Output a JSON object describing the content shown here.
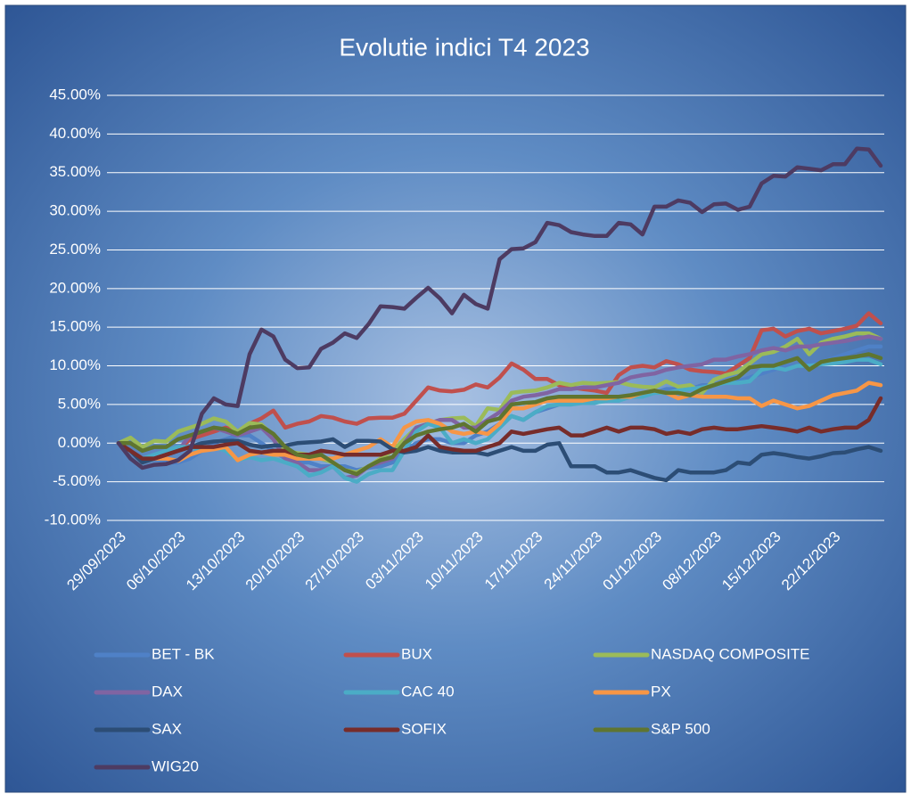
{
  "chart_data": {
    "type": "line",
    "title": "Evolutie indici T4 2023",
    "categories": [
      "29/09/2023",
      null,
      null,
      null,
      null,
      "06/10/2023",
      null,
      null,
      null,
      null,
      "13/10/2023",
      null,
      null,
      null,
      null,
      "20/10/2023",
      null,
      null,
      null,
      null,
      "27/10/2023",
      null,
      null,
      null,
      null,
      "03/11/2023",
      null,
      null,
      null,
      null,
      "10/11/2023",
      null,
      null,
      null,
      null,
      "17/11/2023",
      null,
      null,
      null,
      null,
      "24/11/2023",
      null,
      null,
      null,
      null,
      "01/12/2023",
      null,
      null,
      null,
      null,
      "08/12/2023",
      null,
      null,
      null,
      null,
      "15/12/2023",
      null,
      null,
      null,
      null,
      "22/12/2023",
      null,
      null,
      null,
      null
    ],
    "ylim": [
      -10,
      45
    ],
    "yticks": [
      {
        "value": -10,
        "label": "-10.00%"
      },
      {
        "value": -5,
        "label": "-5.00%"
      },
      {
        "value": 0,
        "label": "0.00%"
      },
      {
        "value": 5,
        "label": "5.00%"
      },
      {
        "value": 10,
        "label": "10.00%"
      },
      {
        "value": 15,
        "label": "15.00%"
      },
      {
        "value": 20,
        "label": "20.00%"
      },
      {
        "value": 25,
        "label": "25.00%"
      },
      {
        "value": 30,
        "label": "30.00%"
      },
      {
        "value": 35,
        "label": "35.00%"
      },
      {
        "value": 40,
        "label": "40.00%"
      },
      {
        "value": 45,
        "label": "45.00%"
      }
    ],
    "grid": true,
    "legend": "bottom",
    "series": [
      {
        "name": "BET - BK",
        "color": "#4f81c7",
        "values": [
          0,
          -1,
          -2,
          -2,
          -2.5,
          -2.5,
          -2,
          -1,
          0,
          0.5,
          1,
          1,
          0,
          -1,
          -2,
          -2.5,
          -2.5,
          -3,
          -3,
          -3,
          -3.5,
          -3.2,
          -3,
          -2.5,
          -1,
          0,
          0.5,
          0.5,
          0,
          0,
          1,
          1.5,
          2.5,
          3.5,
          3,
          4,
          4.5,
          5,
          5,
          5.5,
          5.5,
          5.5,
          6,
          6,
          6.5,
          6.5,
          7,
          7,
          7,
          7.5,
          7.5,
          8,
          8,
          8.5,
          9,
          9.5,
          10,
          10,
          10.5,
          10.5,
          11,
          11.5,
          12,
          12.5,
          12.5
        ]
      },
      {
        "name": "BUX",
        "color": "#c0504d",
        "values": [
          0,
          -1,
          -2,
          -2,
          -1.5,
          -1,
          0.5,
          1,
          1.5,
          2,
          1.5,
          2.5,
          3.2,
          4.2,
          2,
          2.5,
          2.8,
          3.5,
          3.3,
          2.8,
          2.5,
          3.2,
          3.3,
          3.3,
          3.8,
          5.5,
          7.2,
          6.8,
          6.7,
          6.9,
          7.6,
          7.2,
          8.5,
          10.3,
          9.5,
          8.3,
          8.3,
          7.5,
          7.2,
          7,
          6.8,
          6.5,
          8.8,
          9.8,
          10,
          9.8,
          10.6,
          10.2,
          9.5,
          9.3,
          9.2,
          9,
          10,
          11,
          14.6,
          14.8,
          13.8,
          14.5,
          14.8,
          14.2,
          14.5,
          14.8,
          15.2,
          16.8,
          15.5
        ]
      },
      {
        "name": "NASDAQ COMPOSITE",
        "color": "#9bbb59",
        "values": [
          0,
          0.7,
          -0.5,
          0.3,
          0.2,
          1.5,
          2,
          2.5,
          3.2,
          2.8,
          1.5,
          2.6,
          2.4,
          1,
          -1,
          -1.3,
          -1.5,
          -2,
          -2.5,
          -3.5,
          -3.8,
          -3,
          -2,
          -1,
          0.5,
          2,
          2.5,
          3,
          3.2,
          3.3,
          2.2,
          4.5,
          4.3,
          6.5,
          6.7,
          6.8,
          7.2,
          7.8,
          7.5,
          7.8,
          7.7,
          7.8,
          7.9,
          7.5,
          7.3,
          7.2,
          8,
          7.3,
          7.5,
          6.5,
          8.2,
          8.8,
          9.2,
          10.3,
          11.5,
          11.8,
          12.5,
          13.5,
          11.5,
          13,
          13.5,
          13.8,
          14.2,
          14.2,
          13.5
        ]
      },
      {
        "name": "DAX",
        "color": "#8064a2",
        "values": [
          0,
          -1,
          -2,
          -2,
          -1.5,
          -1,
          1,
          1.5,
          2,
          1.5,
          1,
          1.5,
          2,
          0.5,
          -2,
          -2.5,
          -3.5,
          -3.5,
          -3,
          -4.5,
          -4.2,
          -3,
          -2.5,
          -2,
          0,
          2,
          2.5,
          3,
          3,
          2,
          2,
          3,
          4,
          5.5,
          6,
          6.2,
          6.5,
          7,
          7,
          7.2,
          7.2,
          7.5,
          7.8,
          8.5,
          8.8,
          9,
          9.5,
          9.8,
          10,
          10.2,
          10.8,
          10.8,
          11.2,
          11.5,
          12,
          12.3,
          12,
          12.5,
          12.5,
          12.8,
          13,
          13.2,
          13.5,
          13.8,
          13.5
        ]
      },
      {
        "name": "CAC 40",
        "color": "#4bacc6",
        "values": [
          0,
          -1,
          -2,
          -1.5,
          -1,
          -0.5,
          -0.5,
          -1,
          -0.5,
          -1,
          -2.2,
          -1.8,
          -2.2,
          -2,
          -2.5,
          -3,
          -4.2,
          -3.8,
          -3,
          -4.5,
          -5,
          -4,
          -3.5,
          -3.5,
          -1,
          1.5,
          2.5,
          2,
          0,
          0.5,
          0,
          0.5,
          2,
          3.5,
          3,
          4,
          4.8,
          5,
          5,
          5.2,
          5.2,
          5.5,
          5.5,
          6,
          6,
          6.5,
          6.5,
          6.8,
          7,
          7.2,
          7.5,
          7.8,
          7.8,
          8,
          9.5,
          9.8,
          9.5,
          10,
          10,
          10.2,
          10.3,
          10.5,
          10.8,
          10.8,
          10.2
        ]
      },
      {
        "name": "PX",
        "color": "#f79646",
        "values": [
          0,
          -1,
          -2.5,
          -2,
          -2,
          -2.3,
          -1.5,
          -1,
          -0.8,
          -0.5,
          -2.2,
          -1.5,
          -1.2,
          -1.5,
          -1.5,
          -2,
          -2,
          -2,
          -2,
          -1.5,
          -1,
          -0.5,
          0.5,
          -0.5,
          2,
          2.8,
          3,
          2.5,
          1.5,
          1.2,
          1.5,
          1.2,
          2.5,
          4.5,
          4.5,
          5,
          5.5,
          5.5,
          5.5,
          5.5,
          5.8,
          5.8,
          6,
          6,
          6.5,
          6.8,
          6.5,
          5.8,
          6.2,
          6,
          6,
          6,
          5.8,
          5.8,
          4.8,
          5.5,
          5,
          4.5,
          4.8,
          5.5,
          6.2,
          6.5,
          6.8,
          7.8,
          7.5
        ]
      },
      {
        "name": "SAX",
        "color": "#2c4d75",
        "values": [
          0,
          -1,
          -2.5,
          -2,
          -1.5,
          -1,
          -0.5,
          0,
          0.2,
          0.3,
          0.3,
          -0.2,
          -0.5,
          -0.3,
          -0.3,
          0,
          0.1,
          0.2,
          0.5,
          -0.5,
          0.3,
          0.3,
          0.2,
          -0.8,
          -1.2,
          -1,
          -0.5,
          -1,
          -1.2,
          -1.2,
          -1.2,
          -1.5,
          -1,
          -0.5,
          -1,
          -1,
          -0.2,
          0,
          -3,
          -3,
          -3,
          -3.8,
          -3.8,
          -3.5,
          -4,
          -4.5,
          -4.8,
          -3.5,
          -3.8,
          -3.8,
          -3.8,
          -3.5,
          -2.5,
          -2.7,
          -1.5,
          -1.3,
          -1.5,
          -1.8,
          -2,
          -1.7,
          -1.3,
          -1.2,
          -0.8,
          -0.5,
          -1
        ]
      },
      {
        "name": "SOFIX",
        "color": "#772c2a",
        "values": [
          0,
          -1,
          -2,
          -2,
          -1.5,
          -1,
          -0.5,
          -0.5,
          -0.5,
          -0.2,
          0,
          -1,
          -1.2,
          -1,
          -1,
          -1.5,
          -1.5,
          -1,
          -1.2,
          -1.5,
          -1.5,
          -1.5,
          -1.5,
          -1,
          -1,
          -0.5,
          1,
          -0.5,
          -0.8,
          -1,
          -1,
          -0.5,
          0,
          1.5,
          1.2,
          1.5,
          1.8,
          2,
          1,
          1,
          1.5,
          2,
          1.5,
          2,
          2,
          1.8,
          1.2,
          1.5,
          1.2,
          1.8,
          2,
          1.8,
          1.8,
          2,
          2.2,
          2,
          1.8,
          1.5,
          2,
          1.5,
          1.8,
          2,
          2,
          3,
          5.8
        ]
      },
      {
        "name": "S&P 500",
        "color": "#5f7530",
        "values": [
          0,
          0,
          -1,
          -0.5,
          -0.5,
          0.5,
          1,
          1.5,
          2,
          1.8,
          1.2,
          2,
          2.2,
          1.2,
          -0.5,
          -1.5,
          -1.8,
          -1.5,
          -2.5,
          -3.5,
          -4,
          -3,
          -2.2,
          -1.8,
          0,
          1,
          1.5,
          1.8,
          2,
          2.5,
          1.5,
          2.8,
          3.2,
          5,
          5.2,
          5.3,
          5.8,
          6,
          6,
          6,
          6,
          6,
          6,
          6.2,
          6.5,
          6.8,
          6.5,
          6.5,
          6.2,
          7,
          7.5,
          8,
          8.5,
          9.8,
          10,
          10,
          10.5,
          11,
          9.5,
          10.5,
          10.8,
          11,
          11.2,
          11.5,
          11
        ]
      },
      {
        "name": "WIG20",
        "color": "#4d3b62",
        "values": [
          0,
          -2,
          -3.2,
          -2.8,
          -2.7,
          -2.2,
          -1,
          3.8,
          5.8,
          5,
          4.8,
          11.5,
          14.7,
          13.8,
          10.8,
          9.7,
          9.8,
          12.2,
          13,
          14.2,
          13.6,
          15.4,
          17.7,
          17.6,
          17.4,
          18.8,
          20.1,
          18.7,
          16.8,
          19.2,
          18,
          17.4,
          23.8,
          25.1,
          25.2,
          26,
          28.5,
          28.2,
          27.3,
          27,
          26.8,
          26.8,
          28.5,
          28.3,
          27,
          30.6,
          30.6,
          31.4,
          31.1,
          29.9,
          30.9,
          31,
          30.2,
          30.6,
          33.6,
          34.6,
          34.5,
          35.7,
          35.5,
          35.3,
          36.1,
          36.1,
          38.1,
          38,
          35.9
        ]
      }
    ]
  }
}
